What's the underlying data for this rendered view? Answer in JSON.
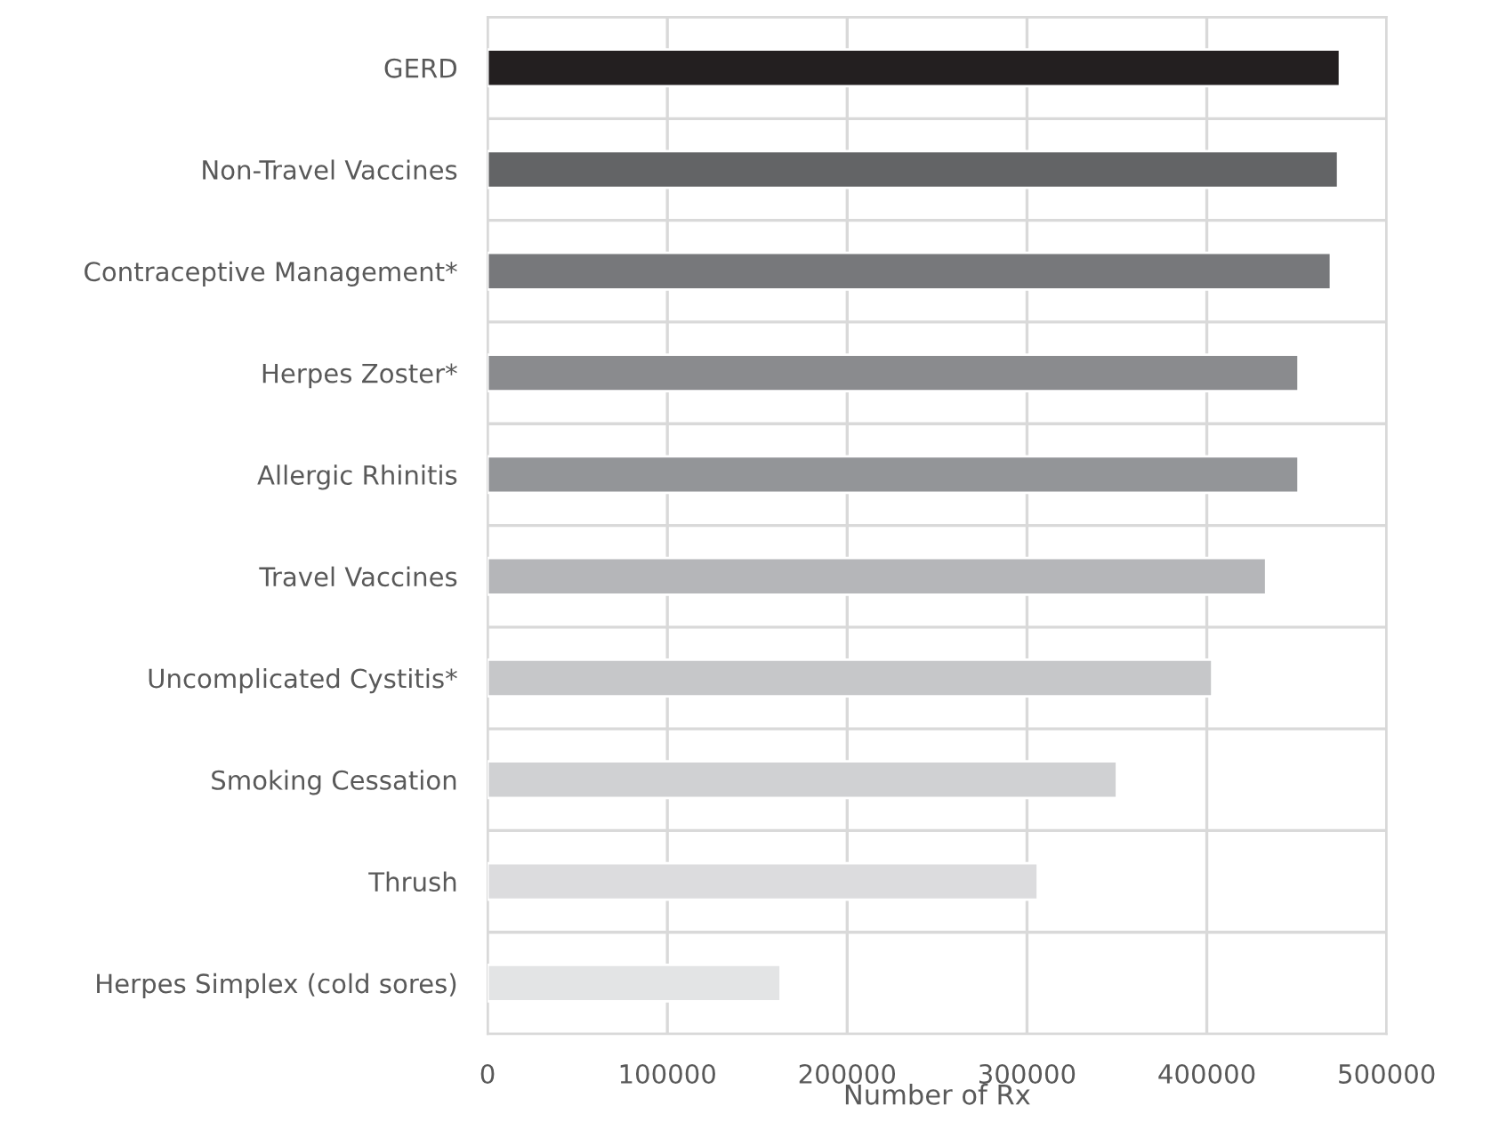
{
  "chart_data": {
    "type": "bar",
    "orientation": "horizontal",
    "xlabel": "Number of Rx",
    "categories": [
      "GERD",
      "Non-Travel Vaccines",
      "Contraceptive Management*",
      "Herpes Zoster*",
      "Allergic Rhinitis",
      "Travel Vaccines",
      "Uncomplicated Cystitis*",
      "Smoking Cessation",
      "Thrush",
      "Herpes Simplex (cold sores)"
    ],
    "values": [
      474000,
      473000,
      469000,
      451000,
      451000,
      433000,
      403000,
      350000,
      306000,
      163000
    ],
    "colors": [
      "#231f20",
      "#636466",
      "#77787b",
      "#8a8b8e",
      "#939598",
      "#b5b6b9",
      "#c6c7c9",
      "#d0d1d3",
      "#dcdcde",
      "#e3e4e5"
    ],
    "xlim": [
      0,
      500000
    ],
    "xticks": [
      0,
      100000,
      200000,
      300000,
      400000,
      500000
    ],
    "grid": true
  }
}
